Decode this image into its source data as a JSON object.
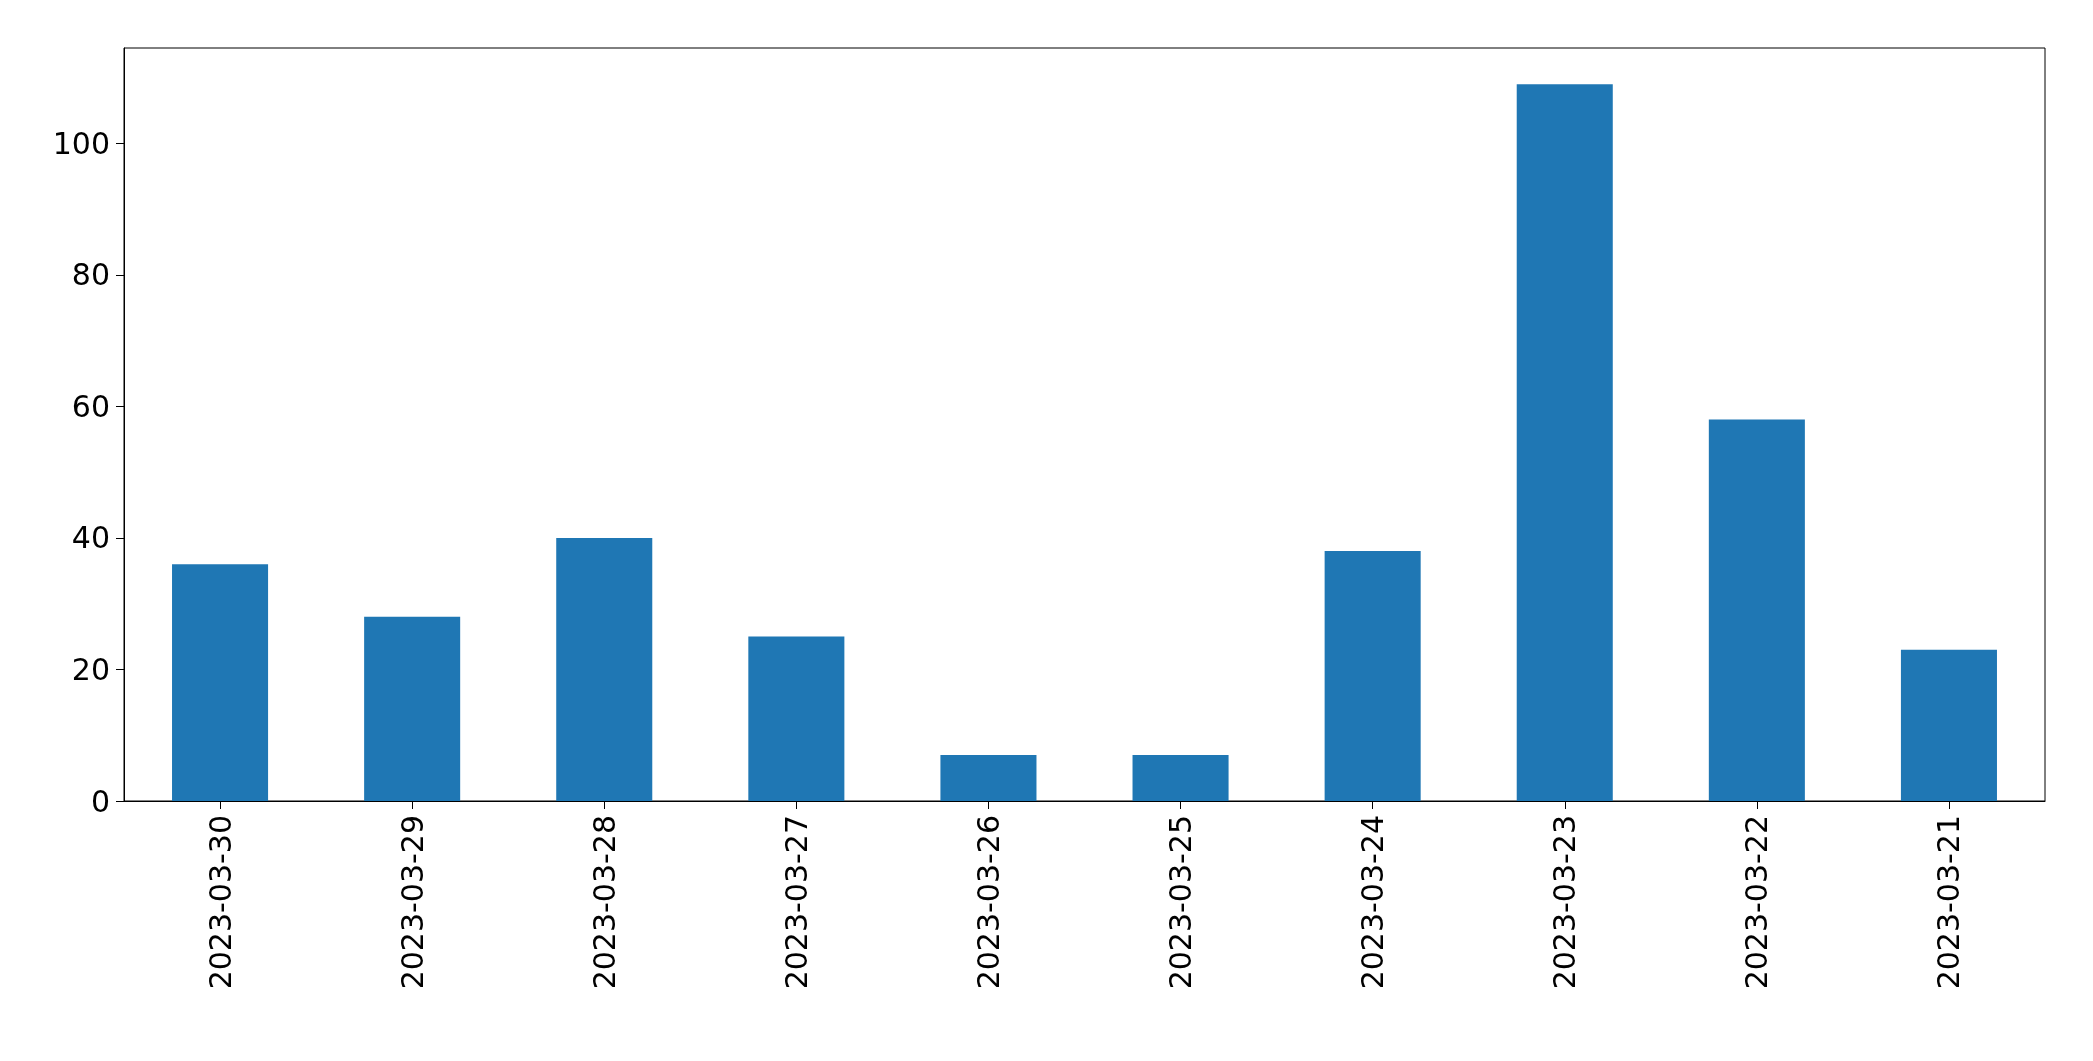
{
  "chart_data": {
    "type": "bar",
    "categories": [
      "2023-03-30",
      "2023-03-29",
      "2023-03-28",
      "2023-03-27",
      "2023-03-26",
      "2023-03-25",
      "2023-03-24",
      "2023-03-23",
      "2023-03-22",
      "2023-03-21"
    ],
    "values": [
      36,
      28,
      40,
      25,
      7,
      7,
      38,
      109,
      58,
      23
    ],
    "color": "#1f77b4",
    "ylim": [
      0,
      114.5
    ],
    "yticks": [
      0,
      20,
      40,
      60,
      80,
      100
    ],
    "grid": false
  }
}
